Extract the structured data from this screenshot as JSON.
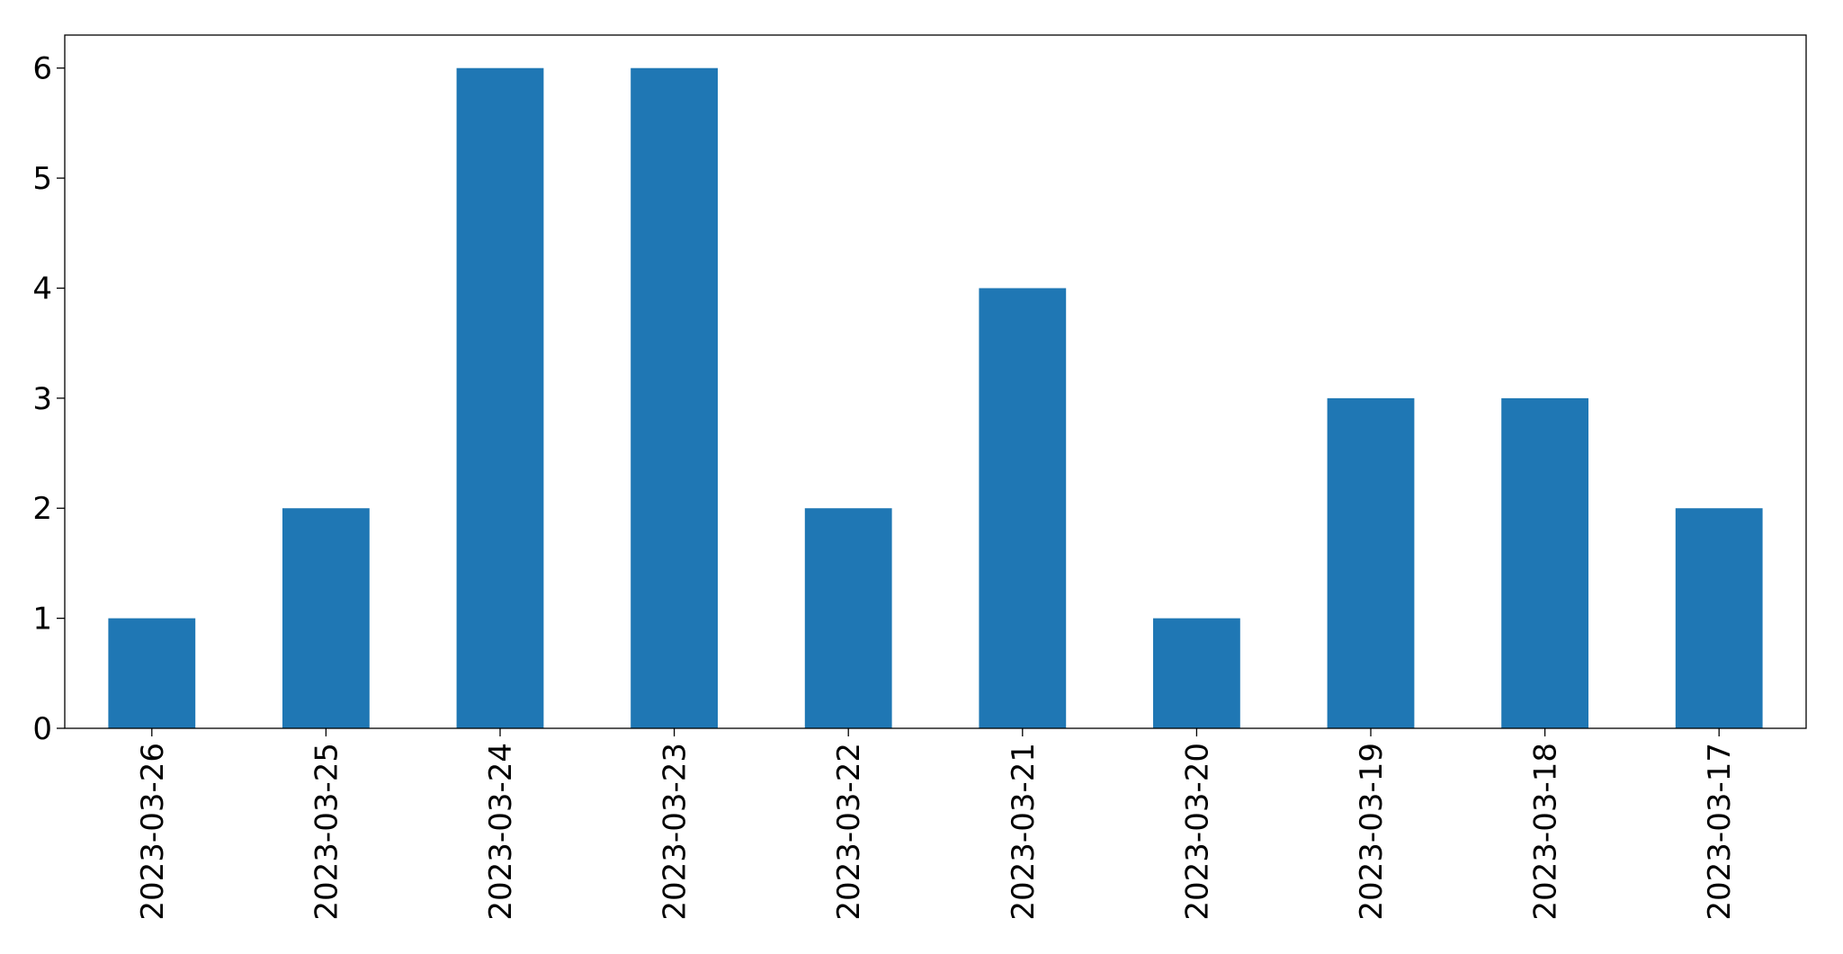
{
  "chart_data": {
    "type": "bar",
    "categories": [
      "2023-03-26",
      "2023-03-25",
      "2023-03-24",
      "2023-03-23",
      "2023-03-22",
      "2023-03-21",
      "2023-03-20",
      "2023-03-19",
      "2023-03-18",
      "2023-03-17"
    ],
    "values": [
      1,
      2,
      6,
      6,
      2,
      4,
      1,
      3,
      3,
      2
    ],
    "color": "#1f77b4",
    "ylim": [
      0,
      6.3
    ],
    "yticks": [
      0,
      1,
      2,
      3,
      4,
      5,
      6
    ],
    "grid": false
  }
}
